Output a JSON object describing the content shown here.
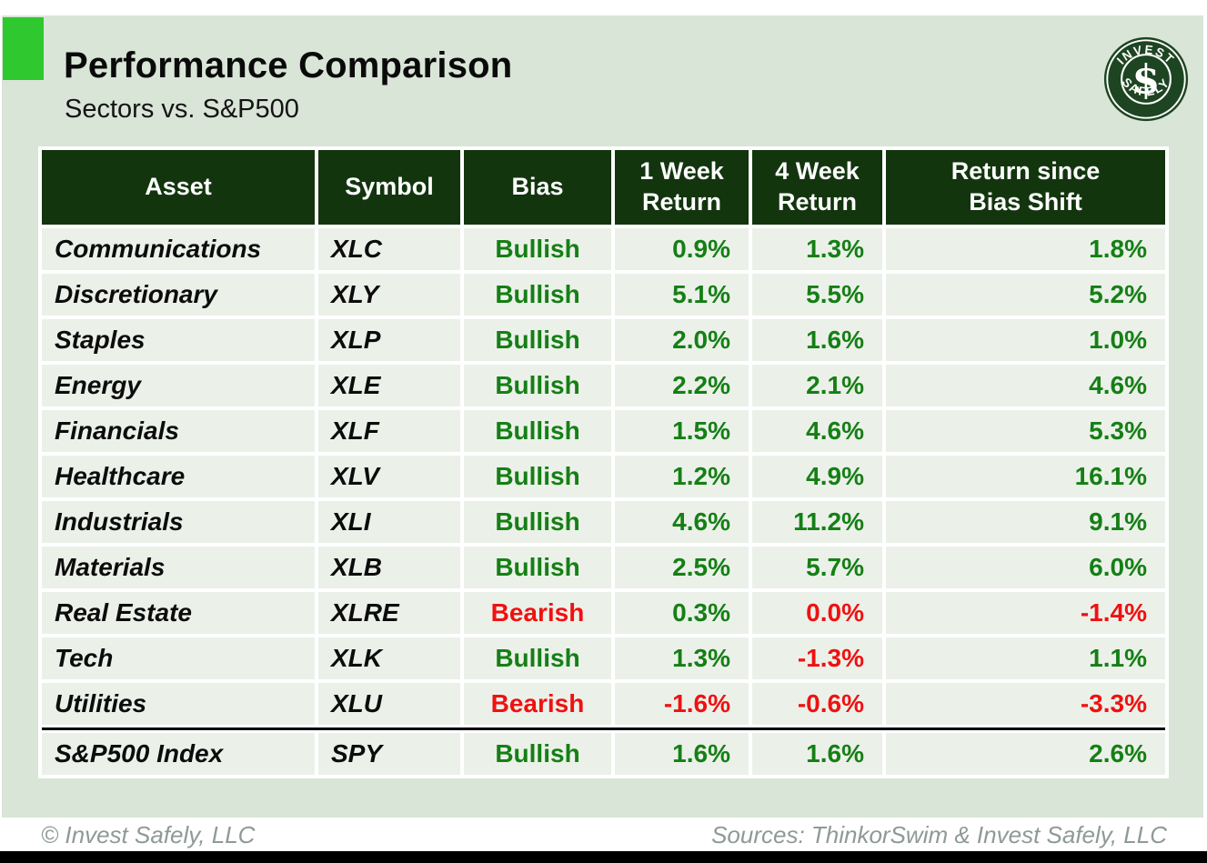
{
  "slide": {
    "title": "Performance Comparison",
    "subtitle": "Sectors vs. S&P500",
    "footer_left": "© Invest Safely, LLC",
    "footer_right": "Sources: ThinkorSwim & Invest Safely, LLC",
    "logo": {
      "top_text": "INVEST",
      "bottom_text": "SAFELY",
      "symbol": "$"
    }
  },
  "colors": {
    "accent_green": "#2fc82f",
    "header_green": "#12350e",
    "mint_background": "#d9e5d7",
    "row_background": "#ebf1e9",
    "positive_green": "#157f15",
    "negative_red": "#f01111",
    "footer_gray": "#8f9a94"
  },
  "table": {
    "headers": [
      "Asset",
      "Symbol",
      "Bias",
      "1 Week\nReturn",
      "4 Week\nReturn",
      "Return since\nBias Shift"
    ],
    "rows": [
      {
        "asset": "Communications",
        "symbol": "XLC",
        "bias": "Bullish",
        "bias_tone": "pos",
        "r1w": "0.9%",
        "r1w_tone": "pos",
        "r4w": "1.3%",
        "r4w_tone": "pos",
        "rsince": "1.8%",
        "rsince_tone": "pos",
        "separator_above": false
      },
      {
        "asset": "Discretionary",
        "symbol": "XLY",
        "bias": "Bullish",
        "bias_tone": "pos",
        "r1w": "5.1%",
        "r1w_tone": "pos",
        "r4w": "5.5%",
        "r4w_tone": "pos",
        "rsince": "5.2%",
        "rsince_tone": "pos",
        "separator_above": false
      },
      {
        "asset": "Staples",
        "symbol": "XLP",
        "bias": "Bullish",
        "bias_tone": "pos",
        "r1w": "2.0%",
        "r1w_tone": "pos",
        "r4w": "1.6%",
        "r4w_tone": "pos",
        "rsince": "1.0%",
        "rsince_tone": "pos",
        "separator_above": false
      },
      {
        "asset": "Energy",
        "symbol": "XLE",
        "bias": "Bullish",
        "bias_tone": "pos",
        "r1w": "2.2%",
        "r1w_tone": "pos",
        "r4w": "2.1%",
        "r4w_tone": "pos",
        "rsince": "4.6%",
        "rsince_tone": "pos",
        "separator_above": false
      },
      {
        "asset": "Financials",
        "symbol": "XLF",
        "bias": "Bullish",
        "bias_tone": "pos",
        "r1w": "1.5%",
        "r1w_tone": "pos",
        "r4w": "4.6%",
        "r4w_tone": "pos",
        "rsince": "5.3%",
        "rsince_tone": "pos",
        "separator_above": false
      },
      {
        "asset": "Healthcare",
        "symbol": "XLV",
        "bias": "Bullish",
        "bias_tone": "pos",
        "r1w": "1.2%",
        "r1w_tone": "pos",
        "r4w": "4.9%",
        "r4w_tone": "pos",
        "rsince": "16.1%",
        "rsince_tone": "pos",
        "separator_above": false
      },
      {
        "asset": "Industrials",
        "symbol": "XLI",
        "bias": "Bullish",
        "bias_tone": "pos",
        "r1w": "4.6%",
        "r1w_tone": "pos",
        "r4w": "11.2%",
        "r4w_tone": "pos",
        "rsince": "9.1%",
        "rsince_tone": "pos",
        "separator_above": false
      },
      {
        "asset": "Materials",
        "symbol": "XLB",
        "bias": "Bullish",
        "bias_tone": "pos",
        "r1w": "2.5%",
        "r1w_tone": "pos",
        "r4w": "5.7%",
        "r4w_tone": "pos",
        "rsince": "6.0%",
        "rsince_tone": "pos",
        "separator_above": false
      },
      {
        "asset": "Real Estate",
        "symbol": "XLRE",
        "bias": "Bearish",
        "bias_tone": "neg",
        "r1w": "0.3%",
        "r1w_tone": "pos",
        "r4w": "0.0%",
        "r4w_tone": "neg",
        "rsince": "-1.4%",
        "rsince_tone": "neg",
        "separator_above": false
      },
      {
        "asset": "Tech",
        "symbol": "XLK",
        "bias": "Bullish",
        "bias_tone": "pos",
        "r1w": "1.3%",
        "r1w_tone": "pos",
        "r4w": "-1.3%",
        "r4w_tone": "neg",
        "rsince": "1.1%",
        "rsince_tone": "pos",
        "separator_above": false
      },
      {
        "asset": "Utilities",
        "symbol": "XLU",
        "bias": "Bearish",
        "bias_tone": "neg",
        "r1w": "-1.6%",
        "r1w_tone": "neg",
        "r4w": "-0.6%",
        "r4w_tone": "neg",
        "rsince": "-3.3%",
        "rsince_tone": "neg",
        "separator_above": false
      },
      {
        "asset": "S&P500 Index",
        "symbol": "SPY",
        "bias": "Bullish",
        "bias_tone": "pos",
        "r1w": "1.6%",
        "r1w_tone": "pos",
        "r4w": "1.6%",
        "r4w_tone": "pos",
        "rsince": "2.6%",
        "rsince_tone": "pos",
        "separator_above": true
      }
    ]
  },
  "chart_data": {
    "type": "table",
    "title": "Performance Comparison",
    "subtitle": "Sectors vs. S&P500",
    "columns": [
      "Asset",
      "Symbol",
      "Bias",
      "1 Week Return",
      "4 Week Return",
      "Return since Bias Shift"
    ],
    "rows": [
      [
        "Communications",
        "XLC",
        "Bullish",
        "0.9%",
        "1.3%",
        "1.8%"
      ],
      [
        "Discretionary",
        "XLY",
        "Bullish",
        "5.1%",
        "5.5%",
        "5.2%"
      ],
      [
        "Staples",
        "XLP",
        "Bullish",
        "2.0%",
        "1.6%",
        "1.0%"
      ],
      [
        "Energy",
        "XLE",
        "Bullish",
        "2.2%",
        "2.1%",
        "4.6%"
      ],
      [
        "Financials",
        "XLF",
        "Bullish",
        "1.5%",
        "4.6%",
        "5.3%"
      ],
      [
        "Healthcare",
        "XLV",
        "Bullish",
        "1.2%",
        "4.9%",
        "16.1%"
      ],
      [
        "Industrials",
        "XLI",
        "Bullish",
        "4.6%",
        "11.2%",
        "9.1%"
      ],
      [
        "Materials",
        "XLB",
        "Bullish",
        "2.5%",
        "5.7%",
        "6.0%"
      ],
      [
        "Real Estate",
        "XLRE",
        "Bearish",
        "0.3%",
        "0.0%",
        "-1.4%"
      ],
      [
        "Tech",
        "XLK",
        "Bullish",
        "1.3%",
        "-1.3%",
        "1.1%"
      ],
      [
        "Utilities",
        "XLU",
        "Bearish",
        "-1.6%",
        "-0.6%",
        "-3.3%"
      ],
      [
        "S&P500 Index",
        "SPY",
        "Bullish",
        "1.6%",
        "1.6%",
        "2.6%"
      ]
    ],
    "notes": "Bullish and positive returns shown in green; Bearish and negative returns shown in red. Black rule separates S&P500 Index benchmark row."
  }
}
